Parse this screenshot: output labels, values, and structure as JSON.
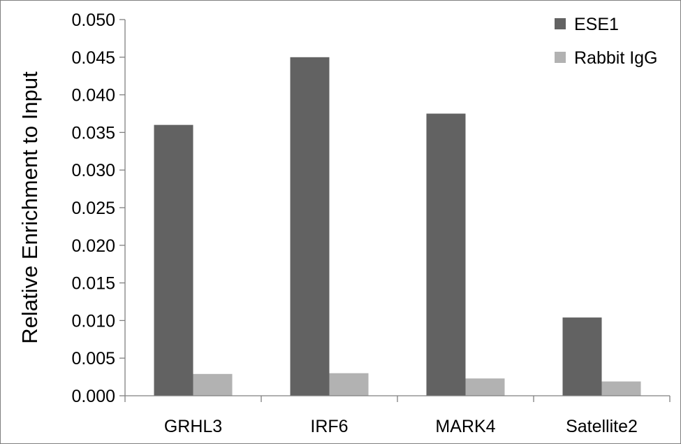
{
  "chart_data": {
    "type": "bar",
    "title": "",
    "xlabel": "",
    "ylabel": "Relative Enrichment to Input",
    "categories": [
      "GRHL3",
      "IRF6",
      "MARK4",
      "Satellite2"
    ],
    "series": [
      {
        "name": "ESE1",
        "color": "#626262",
        "values": [
          0.036,
          0.045,
          0.0375,
          0.0104
        ]
      },
      {
        "name": "Rabbit IgG",
        "color": "#b2b2b2",
        "values": [
          0.0029,
          0.003,
          0.0023,
          0.0019
        ]
      }
    ],
    "ylim": [
      0,
      0.05
    ],
    "yticks": [
      "0.000",
      "0.005",
      "0.010",
      "0.015",
      "0.020",
      "0.025",
      "0.030",
      "0.035",
      "0.040",
      "0.045",
      "0.050"
    ],
    "grid": false,
    "legend_position": "top-right"
  }
}
